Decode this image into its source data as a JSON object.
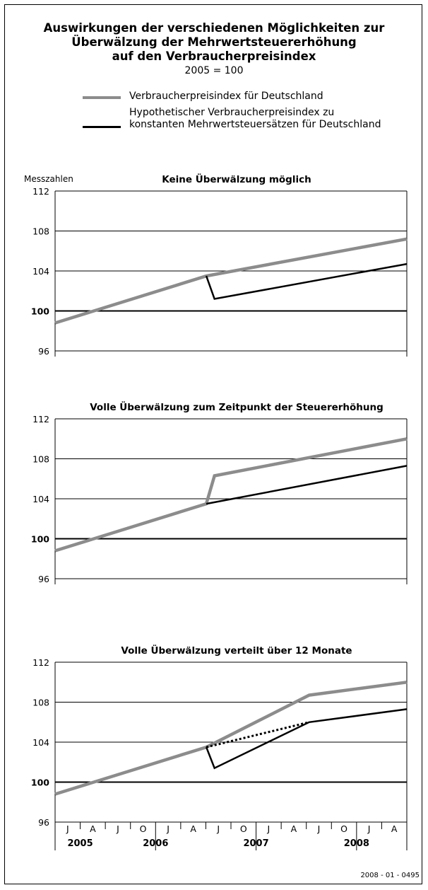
{
  "header": {
    "title_lines": [
      "Auswirkungen der verschiedenen Möglichkeiten zur",
      "Überwälzung der Mehrwertsteuererhöhung",
      "auf den Verbraucherpreisindex"
    ],
    "subtitle": "2005 = 100"
  },
  "legend": {
    "items": [
      {
        "label_lines": [
          "Verbraucherpreisindex für Deutschland"
        ],
        "color": "#8c8c8c"
      },
      {
        "label_lines": [
          "Hypothetischer Verbraucherpreisindex zu",
          "konstanten Mehrwertsteuersätzen für Deutschland"
        ],
        "color": "#000000"
      }
    ]
  },
  "y_axis_unit": "Messzahlen",
  "source_code": "2008 - 01 - 0495",
  "colors": {
    "gray_series": "#8c8c8c",
    "black_series": "#000000",
    "grid": "#000000"
  },
  "chart_data": [
    {
      "type": "line",
      "title": "Keine Überwälzung möglich",
      "ylim": [
        96,
        112
      ],
      "yticks": [
        "96",
        "100",
        "104",
        "108",
        "112"
      ],
      "x_range": [
        2005.5,
        2008.92
      ],
      "series": [
        {
          "name": "Verbraucherpreisindex für Deutschland",
          "style": "gray",
          "x": [
            2005.5,
            2006.97,
            2008.92
          ],
          "y": [
            98.8,
            103.5,
            107.2
          ]
        },
        {
          "name": "Hypothetischer Verbraucherpreisindex zu konstanten Mehrwertsteuersätzen für Deutschland",
          "style": "black",
          "x": [
            2006.97,
            2007.05,
            2008.92
          ],
          "y": [
            103.5,
            101.2,
            104.7
          ]
        }
      ]
    },
    {
      "type": "line",
      "title": "Volle Überwälzung zum Zeitpunkt der Steuererhöhung",
      "ylim": [
        96,
        112
      ],
      "yticks": [
        "96",
        "100",
        "104",
        "108",
        "112"
      ],
      "x_range": [
        2005.5,
        2008.92
      ],
      "series": [
        {
          "name": "Verbraucherpreisindex für Deutschland",
          "style": "gray",
          "x": [
            2005.5,
            2006.97,
            2007.05,
            2008.92
          ],
          "y": [
            98.8,
            103.5,
            106.3,
            110.0
          ]
        },
        {
          "name": "Hypothetischer Verbraucherpreisindex zu konstanten Mehrwertsteuersätzen für Deutschland",
          "style": "black",
          "x": [
            2006.97,
            2008.92
          ],
          "y": [
            103.5,
            107.3
          ]
        }
      ]
    },
    {
      "type": "line",
      "title": "Volle Überwälzung verteilt über 12 Monate",
      "ylim": [
        96,
        112
      ],
      "yticks": [
        "96",
        "100",
        "104",
        "108",
        "112"
      ],
      "x_range": [
        2005.5,
        2008.92
      ],
      "series": [
        {
          "name": "Verbraucherpreisindex für Deutschland",
          "style": "gray",
          "x": [
            2005.5,
            2006.97,
            2007.97,
            2008.92
          ],
          "y": [
            98.8,
            103.5,
            108.7,
            110.0
          ]
        },
        {
          "name": "Hypothetischer Verbraucherpreisindex zu konstanten Mehrwertsteuersätzen für Deutschland",
          "style": "black",
          "x": [
            2006.97,
            2007.05,
            2007.97,
            2008.92
          ],
          "y": [
            103.5,
            101.4,
            106.0,
            107.3
          ]
        },
        {
          "name": "",
          "style": "dotted",
          "x": [
            2006.97,
            2007.97
          ],
          "y": [
            103.5,
            106.0
          ]
        }
      ],
      "month_ticks": [
        "J",
        "A",
        "J",
        "O",
        "J",
        "A",
        "J",
        "O",
        "J",
        "A",
        "J",
        "O",
        "J",
        "A"
      ],
      "year_labels": [
        "2005",
        "2006",
        "2007",
        "2008"
      ]
    }
  ]
}
